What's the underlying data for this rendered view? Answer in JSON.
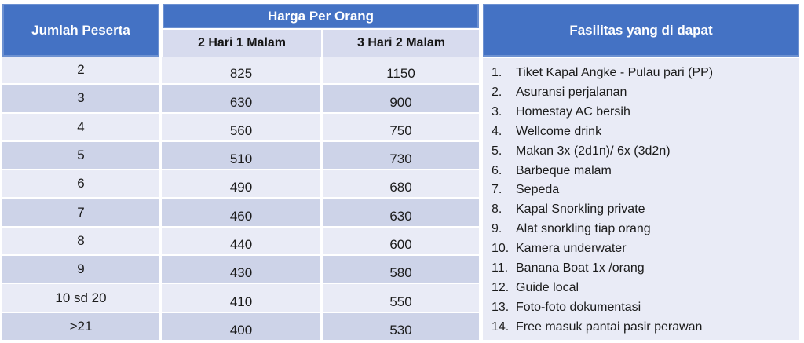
{
  "pricing_table": {
    "participants_header": "Jumlah Peserta",
    "price_header": "Harga Per Orang",
    "duration_headers": [
      "2 Hari 1 Malam",
      "3 Hari 2 Malam"
    ],
    "rows": [
      {
        "participants": "2",
        "price_2d1n": "825",
        "price_3d2n": "1150"
      },
      {
        "participants": "3",
        "price_2d1n": "630",
        "price_3d2n": "900"
      },
      {
        "participants": "4",
        "price_2d1n": "560",
        "price_3d2n": "750"
      },
      {
        "participants": "5",
        "price_2d1n": "510",
        "price_3d2n": "730"
      },
      {
        "participants": "6",
        "price_2d1n": "490",
        "price_3d2n": "680"
      },
      {
        "participants": "7",
        "price_2d1n": "460",
        "price_3d2n": "630"
      },
      {
        "participants": "8",
        "price_2d1n": "440",
        "price_3d2n": "600"
      },
      {
        "participants": "9",
        "price_2d1n": "430",
        "price_3d2n": "580"
      },
      {
        "participants": "10 sd 20",
        "price_2d1n": "410",
        "price_3d2n": "550"
      },
      {
        "participants": ">21",
        "price_2d1n": "400",
        "price_3d2n": "530"
      }
    ]
  },
  "facilities_panel": {
    "header": "Fasilitas yang di dapat",
    "items": [
      {
        "num": "1.",
        "text": "Tiket Kapal Angke - Pulau pari (PP)"
      },
      {
        "num": "2.",
        "text": "Asuransi perjalanan"
      },
      {
        "num": "3.",
        "text": "Homestay AC bersih"
      },
      {
        "num": "4.",
        "text": "Wellcome drink"
      },
      {
        "num": "5.",
        "text": "Makan 3x (2d1n)/ 6x (3d2n)"
      },
      {
        "num": "6.",
        "text": "Barbeque malam"
      },
      {
        "num": "7.",
        "text": "Sepeda"
      },
      {
        "num": "8.",
        "text": "Kapal Snorkling private"
      },
      {
        "num": "9.",
        "text": "Alat snorkling tiap orang"
      },
      {
        "num": "10.",
        "text": "Kamera underwater"
      },
      {
        "num": "11.",
        "text": "Banana Boat 1x /orang"
      },
      {
        "num": "12.",
        "text": "Guide local"
      },
      {
        "num": "13.",
        "text": "Foto-foto dokumentasi"
      },
      {
        "num": "14.",
        "text": "Free masuk pantai pasir perawan"
      }
    ]
  },
  "colors": {
    "header_blue": "#4472C4",
    "subheader_bg": "#D7DBEE",
    "band_light": "#E9EBF6",
    "band_dark": "#CDD3E8",
    "panel_bg": "#E9EBF6",
    "header_text": "#FFFFFF",
    "body_text": "#1B1B1B"
  },
  "chart_data": {
    "type": "table",
    "title": "Harga Per Orang",
    "columns": [
      "Jumlah Peserta",
      "2 Hari 1 Malam",
      "3 Hari 2 Malam"
    ],
    "rows": [
      [
        "2",
        825,
        1150
      ],
      [
        "3",
        630,
        900
      ],
      [
        "4",
        560,
        750
      ],
      [
        "5",
        510,
        730
      ],
      [
        "6",
        490,
        680
      ],
      [
        "7",
        460,
        630
      ],
      [
        "8",
        440,
        600
      ],
      [
        "9",
        430,
        580
      ],
      [
        "10 sd 20",
        410,
        550
      ],
      [
        ">21",
        400,
        530
      ]
    ]
  }
}
